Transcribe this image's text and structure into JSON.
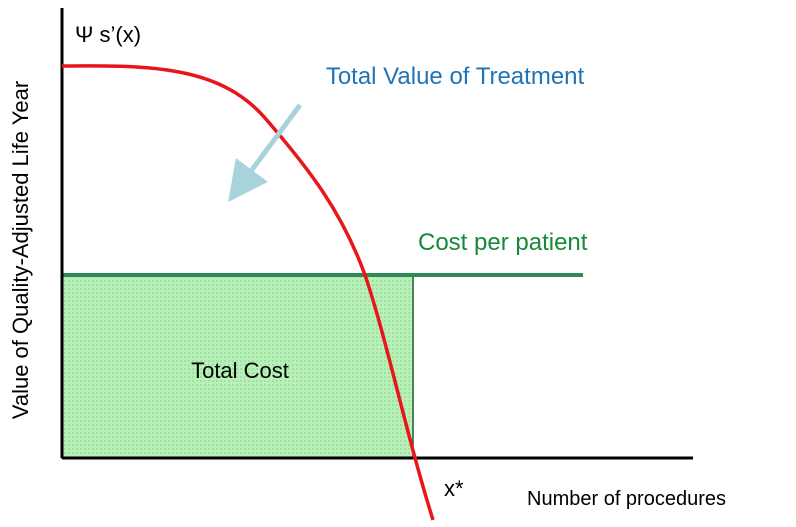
{
  "axes": {
    "y_label": "Value of Quality-Adjusted Life Year",
    "y_symbol": "Ψ s’(x)",
    "x_label": "Number of procedures",
    "x_marker": "x*"
  },
  "labels": {
    "benefit_curve": "Total Value of Treatment",
    "cost_line": "Cost per patient",
    "cost_area": "Total Cost"
  }
}
